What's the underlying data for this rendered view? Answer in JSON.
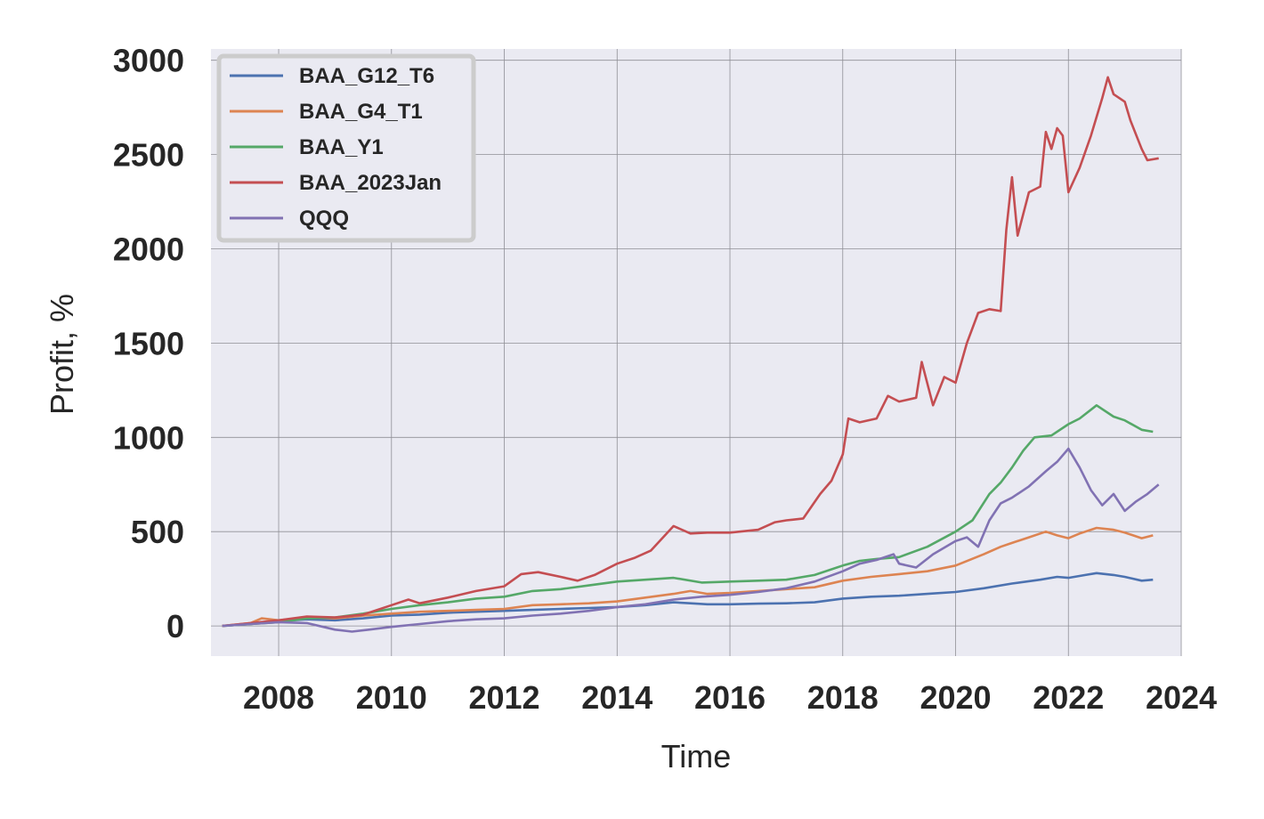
{
  "chart_data": {
    "type": "line",
    "title": "",
    "xlabel": "Time",
    "ylabel": "Profit, %",
    "xlim": [
      2006.8,
      2024.0
    ],
    "ylim": [
      -160,
      3060
    ],
    "x_ticks": [
      2008,
      2010,
      2012,
      2014,
      2016,
      2018,
      2020,
      2022,
      2024
    ],
    "y_ticks": [
      0,
      500,
      1000,
      1500,
      2000,
      2500,
      3000
    ],
    "grid": true,
    "legend_position": "top-left",
    "series": [
      {
        "name": "BAA_G12_T6",
        "color": "#4c72b0",
        "points": [
          [
            2007.0,
            0
          ],
          [
            2007.5,
            10
          ],
          [
            2008.0,
            25
          ],
          [
            2008.5,
            35
          ],
          [
            2009.0,
            30
          ],
          [
            2009.5,
            40
          ],
          [
            2010.0,
            55
          ],
          [
            2010.5,
            60
          ],
          [
            2011.0,
            70
          ],
          [
            2011.5,
            75
          ],
          [
            2012.0,
            80
          ],
          [
            2012.5,
            85
          ],
          [
            2013.0,
            90
          ],
          [
            2013.5,
            95
          ],
          [
            2014.0,
            100
          ],
          [
            2014.5,
            110
          ],
          [
            2015.0,
            125
          ],
          [
            2015.3,
            120
          ],
          [
            2015.6,
            115
          ],
          [
            2016.0,
            115
          ],
          [
            2016.5,
            118
          ],
          [
            2017.0,
            120
          ],
          [
            2017.5,
            125
          ],
          [
            2018.0,
            145
          ],
          [
            2018.5,
            155
          ],
          [
            2019.0,
            160
          ],
          [
            2019.5,
            170
          ],
          [
            2020.0,
            180
          ],
          [
            2020.5,
            200
          ],
          [
            2021.0,
            225
          ],
          [
            2021.5,
            245
          ],
          [
            2021.8,
            260
          ],
          [
            2022.0,
            255
          ],
          [
            2022.3,
            270
          ],
          [
            2022.5,
            280
          ],
          [
            2022.8,
            270
          ],
          [
            2023.0,
            260
          ],
          [
            2023.3,
            240
          ],
          [
            2023.5,
            245
          ]
        ]
      },
      {
        "name": "BAA_G4_T1",
        "color": "#dd8452",
        "points": [
          [
            2007.0,
            0
          ],
          [
            2007.5,
            15
          ],
          [
            2007.7,
            40
          ],
          [
            2008.0,
            30
          ],
          [
            2008.5,
            45
          ],
          [
            2009.0,
            40
          ],
          [
            2009.5,
            55
          ],
          [
            2010.0,
            65
          ],
          [
            2010.5,
            75
          ],
          [
            2011.0,
            80
          ],
          [
            2011.5,
            85
          ],
          [
            2012.0,
            90
          ],
          [
            2012.5,
            110
          ],
          [
            2013.0,
            115
          ],
          [
            2013.5,
            120
          ],
          [
            2014.0,
            130
          ],
          [
            2014.5,
            150
          ],
          [
            2015.0,
            170
          ],
          [
            2015.3,
            185
          ],
          [
            2015.6,
            170
          ],
          [
            2016.0,
            175
          ],
          [
            2016.5,
            185
          ],
          [
            2017.0,
            195
          ],
          [
            2017.5,
            205
          ],
          [
            2018.0,
            240
          ],
          [
            2018.5,
            260
          ],
          [
            2019.0,
            275
          ],
          [
            2019.5,
            290
          ],
          [
            2020.0,
            320
          ],
          [
            2020.5,
            380
          ],
          [
            2020.8,
            420
          ],
          [
            2021.0,
            440
          ],
          [
            2021.3,
            470
          ],
          [
            2021.6,
            500
          ],
          [
            2021.8,
            480
          ],
          [
            2022.0,
            465
          ],
          [
            2022.2,
            490
          ],
          [
            2022.5,
            520
          ],
          [
            2022.8,
            510
          ],
          [
            2023.0,
            495
          ],
          [
            2023.3,
            465
          ],
          [
            2023.5,
            480
          ]
        ]
      },
      {
        "name": "BAA_Y1",
        "color": "#55a868",
        "points": [
          [
            2007.0,
            0
          ],
          [
            2007.5,
            10
          ],
          [
            2008.0,
            20
          ],
          [
            2008.5,
            40
          ],
          [
            2009.0,
            45
          ],
          [
            2009.5,
            65
          ],
          [
            2010.0,
            90
          ],
          [
            2010.5,
            110
          ],
          [
            2011.0,
            125
          ],
          [
            2011.5,
            145
          ],
          [
            2012.0,
            155
          ],
          [
            2012.5,
            185
          ],
          [
            2013.0,
            195
          ],
          [
            2013.5,
            215
          ],
          [
            2014.0,
            235
          ],
          [
            2014.5,
            245
          ],
          [
            2015.0,
            255
          ],
          [
            2015.5,
            230
          ],
          [
            2016.0,
            235
          ],
          [
            2016.5,
            240
          ],
          [
            2017.0,
            245
          ],
          [
            2017.5,
            270
          ],
          [
            2018.0,
            320
          ],
          [
            2018.3,
            345
          ],
          [
            2018.6,
            355
          ],
          [
            2019.0,
            365
          ],
          [
            2019.5,
            420
          ],
          [
            2020.0,
            500
          ],
          [
            2020.3,
            560
          ],
          [
            2020.6,
            700
          ],
          [
            2020.8,
            760
          ],
          [
            2021.0,
            840
          ],
          [
            2021.2,
            930
          ],
          [
            2021.4,
            1000
          ],
          [
            2021.7,
            1010
          ],
          [
            2022.0,
            1070
          ],
          [
            2022.2,
            1100
          ],
          [
            2022.5,
            1170
          ],
          [
            2022.8,
            1110
          ],
          [
            2023.0,
            1090
          ],
          [
            2023.3,
            1040
          ],
          [
            2023.5,
            1030
          ]
        ]
      },
      {
        "name": "BAA_2023Jan",
        "color": "#c44e52",
        "points": [
          [
            2007.0,
            0
          ],
          [
            2007.5,
            15
          ],
          [
            2008.0,
            30
          ],
          [
            2008.5,
            50
          ],
          [
            2009.0,
            45
          ],
          [
            2009.5,
            60
          ],
          [
            2010.0,
            110
          ],
          [
            2010.3,
            140
          ],
          [
            2010.5,
            120
          ],
          [
            2011.0,
            150
          ],
          [
            2011.5,
            185
          ],
          [
            2012.0,
            210
          ],
          [
            2012.3,
            275
          ],
          [
            2012.6,
            285
          ],
          [
            2013.0,
            260
          ],
          [
            2013.3,
            240
          ],
          [
            2013.6,
            270
          ],
          [
            2014.0,
            330
          ],
          [
            2014.3,
            360
          ],
          [
            2014.6,
            400
          ],
          [
            2015.0,
            530
          ],
          [
            2015.3,
            490
          ],
          [
            2015.6,
            495
          ],
          [
            2016.0,
            495
          ],
          [
            2016.5,
            510
          ],
          [
            2016.8,
            550
          ],
          [
            2017.0,
            560
          ],
          [
            2017.3,
            570
          ],
          [
            2017.6,
            700
          ],
          [
            2017.8,
            770
          ],
          [
            2018.0,
            910
          ],
          [
            2018.1,
            1100
          ],
          [
            2018.3,
            1080
          ],
          [
            2018.6,
            1100
          ],
          [
            2018.8,
            1220
          ],
          [
            2019.0,
            1190
          ],
          [
            2019.3,
            1210
          ],
          [
            2019.4,
            1400
          ],
          [
            2019.6,
            1170
          ],
          [
            2019.8,
            1320
          ],
          [
            2020.0,
            1290
          ],
          [
            2020.2,
            1500
          ],
          [
            2020.4,
            1660
          ],
          [
            2020.6,
            1680
          ],
          [
            2020.8,
            1670
          ],
          [
            2020.9,
            2100
          ],
          [
            2021.0,
            2380
          ],
          [
            2021.1,
            2070
          ],
          [
            2021.3,
            2300
          ],
          [
            2021.5,
            2330
          ],
          [
            2021.6,
            2620
          ],
          [
            2021.7,
            2530
          ],
          [
            2021.8,
            2640
          ],
          [
            2021.9,
            2600
          ],
          [
            2022.0,
            2300
          ],
          [
            2022.2,
            2430
          ],
          [
            2022.4,
            2600
          ],
          [
            2022.6,
            2800
          ],
          [
            2022.7,
            2910
          ],
          [
            2022.8,
            2820
          ],
          [
            2023.0,
            2780
          ],
          [
            2023.1,
            2680
          ],
          [
            2023.3,
            2530
          ],
          [
            2023.4,
            2470
          ],
          [
            2023.6,
            2480
          ]
        ]
      },
      {
        "name": "QQQ",
        "color": "#8172b3",
        "points": [
          [
            2007.0,
            0
          ],
          [
            2007.5,
            10
          ],
          [
            2008.0,
            20
          ],
          [
            2008.5,
            15
          ],
          [
            2009.0,
            -20
          ],
          [
            2009.3,
            -30
          ],
          [
            2009.6,
            -20
          ],
          [
            2010.0,
            -5
          ],
          [
            2010.5,
            10
          ],
          [
            2011.0,
            25
          ],
          [
            2011.5,
            35
          ],
          [
            2012.0,
            40
          ],
          [
            2012.5,
            55
          ],
          [
            2013.0,
            65
          ],
          [
            2013.5,
            80
          ],
          [
            2014.0,
            100
          ],
          [
            2014.5,
            115
          ],
          [
            2015.0,
            140
          ],
          [
            2015.5,
            155
          ],
          [
            2016.0,
            165
          ],
          [
            2016.5,
            180
          ],
          [
            2017.0,
            200
          ],
          [
            2017.5,
            235
          ],
          [
            2018.0,
            290
          ],
          [
            2018.3,
            330
          ],
          [
            2018.6,
            350
          ],
          [
            2018.9,
            380
          ],
          [
            2019.0,
            330
          ],
          [
            2019.3,
            310
          ],
          [
            2019.6,
            380
          ],
          [
            2020.0,
            450
          ],
          [
            2020.2,
            470
          ],
          [
            2020.4,
            420
          ],
          [
            2020.6,
            560
          ],
          [
            2020.8,
            650
          ],
          [
            2021.0,
            680
          ],
          [
            2021.3,
            740
          ],
          [
            2021.6,
            820
          ],
          [
            2021.8,
            870
          ],
          [
            2022.0,
            940
          ],
          [
            2022.2,
            840
          ],
          [
            2022.4,
            720
          ],
          [
            2022.6,
            640
          ],
          [
            2022.8,
            700
          ],
          [
            2023.0,
            610
          ],
          [
            2023.2,
            660
          ],
          [
            2023.4,
            700
          ],
          [
            2023.6,
            750
          ]
        ]
      }
    ]
  }
}
